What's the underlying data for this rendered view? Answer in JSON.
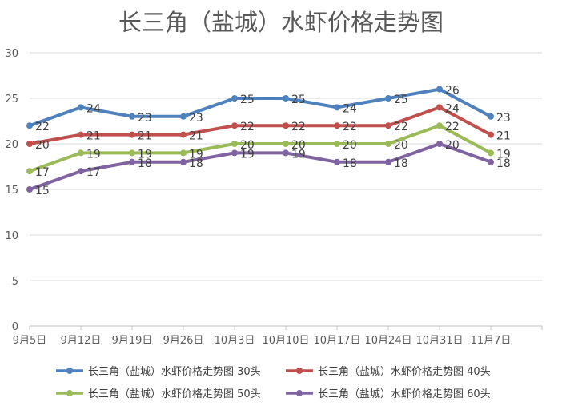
{
  "chart_data": {
    "type": "line",
    "title": "长三角（盐城）水虾价格走势图",
    "xlabel": "",
    "ylabel": "",
    "categories": [
      "9月5日",
      "9月12日",
      "9月19日",
      "9月26日",
      "10月3日",
      "10月10日",
      "10月17日",
      "10月24日",
      "10月31日",
      "11月7日"
    ],
    "ylim": [
      0,
      30
    ],
    "yticks": [
      0,
      5,
      10,
      15,
      20,
      25,
      30
    ],
    "grid": true,
    "legend_position": "bottom",
    "data_labels": true,
    "series": [
      {
        "name": "长三角（盐城）水虾价格走势图 30头",
        "color": "#4f81bd",
        "values": [
          22,
          24,
          23,
          23,
          25,
          25,
          24,
          25,
          26,
          23
        ]
      },
      {
        "name": "长三角（盐城）水虾价格走势图 40头",
        "color": "#c0504d",
        "values": [
          20,
          21,
          21,
          21,
          22,
          22,
          22,
          22,
          24,
          21
        ]
      },
      {
        "name": "长三角（盐城）水虾价格走势图 50头",
        "color": "#9bbb59",
        "values": [
          17,
          19,
          19,
          19,
          20,
          20,
          20,
          20,
          22,
          19
        ]
      },
      {
        "name": "长三角（盐城）水虾价格走势图 60头",
        "color": "#8064a2",
        "values": [
          15,
          17,
          18,
          18,
          19,
          19,
          18,
          18,
          20,
          18
        ]
      }
    ]
  }
}
